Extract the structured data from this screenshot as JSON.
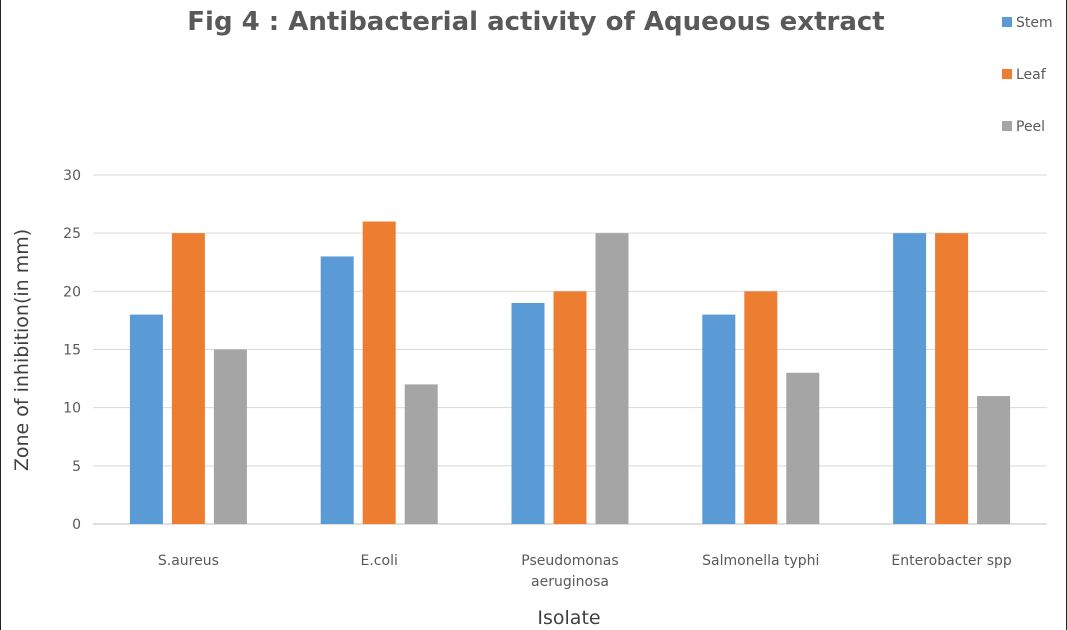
{
  "chart_data": {
    "type": "bar",
    "title": "Fig 4 : Antibacterial activity of Aqueous extract",
    "xlabel": "Isolate",
    "ylabel": "Zone of inhibition(in mm)",
    "categories": [
      [
        "S.aureus"
      ],
      [
        "E.coli"
      ],
      [
        "Pseudomonas",
        "aeruginosa"
      ],
      [
        "Salmonella typhi"
      ],
      [
        "Enterobacter spp"
      ]
    ],
    "series": [
      {
        "name": "Stem",
        "color": "#5B9BD5",
        "values": [
          18,
          23,
          19,
          18,
          25
        ]
      },
      {
        "name": "Leaf",
        "color": "#ED7D31",
        "values": [
          25,
          26,
          20,
          20,
          25
        ]
      },
      {
        "name": "Peel",
        "color": "#A5A5A5",
        "values": [
          15,
          12,
          25,
          13,
          11
        ]
      }
    ],
    "ylim": [
      0,
      30
    ],
    "yticks": [
      0,
      5,
      10,
      15,
      20,
      25,
      30
    ],
    "grid": true,
    "legend_position": "top-right"
  }
}
